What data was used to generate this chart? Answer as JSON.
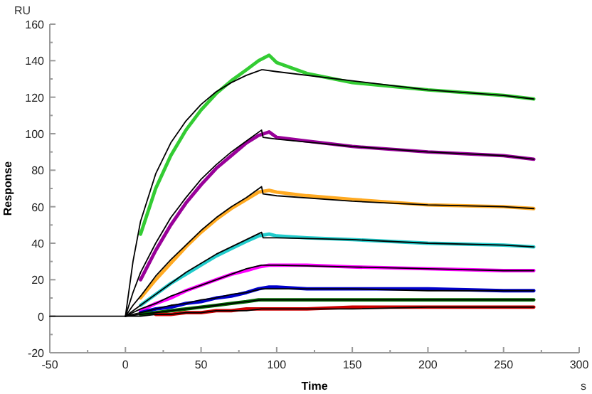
{
  "chart_data": {
    "type": "line",
    "xlabel": "Time",
    "ylabel": "Response",
    "annotations": [
      "RU",
      "s"
    ],
    "xlim": [
      -50,
      300
    ],
    "xticks": [
      -50,
      {
        "value": -25,
        "label": null
      },
      0,
      {
        "value": 25,
        "label": null
      },
      50,
      {
        "value": 75,
        "label": null
      },
      100,
      {
        "value": 125,
        "label": null
      },
      150,
      {
        "value": 175,
        "label": null
      },
      200,
      {
        "value": 225,
        "label": null
      },
      250,
      {
        "value": 275,
        "label": null
      },
      300
    ],
    "ylim": [
      -20,
      160
    ],
    "yticks": [
      -20,
      {
        "value": -10,
        "label": null
      },
      0,
      {
        "value": 10,
        "label": null
      },
      20,
      {
        "value": 30,
        "label": null
      },
      40,
      {
        "value": 50,
        "label": null
      },
      60,
      {
        "value": 70,
        "label": null
      },
      80,
      {
        "value": 90,
        "label": null
      },
      100,
      {
        "value": 110,
        "label": null
      },
      120,
      {
        "value": 130,
        "label": null
      },
      140,
      {
        "value": 150,
        "label": null
      },
      160
    ],
    "grid": false,
    "marker": "none",
    "line_style": "solid",
    "series": [
      {
        "color": "#33cc33",
        "x": [
          10,
          20,
          30,
          40,
          50,
          60,
          70,
          80,
          88,
          95,
          100,
          120,
          150,
          200,
          250,
          270
        ],
        "values": [
          45,
          70,
          88,
          102,
          113,
          122,
          129,
          135,
          140,
          143,
          139,
          133,
          128,
          124,
          121,
          119
        ]
      },
      {
        "color": "#990099",
        "x": [
          10,
          20,
          30,
          40,
          50,
          60,
          70,
          80,
          88,
          95,
          100,
          120,
          150,
          200,
          250,
          270
        ],
        "values": [
          20,
          36,
          50,
          62,
          72,
          81,
          88,
          95,
          99,
          101,
          98,
          96,
          93,
          90,
          88,
          86
        ]
      },
      {
        "color": "#ffaa22",
        "x": [
          10,
          20,
          30,
          40,
          50,
          60,
          70,
          80,
          88,
          95,
          100,
          120,
          150,
          200,
          250,
          270
        ],
        "values": [
          10,
          20,
          29,
          38,
          46,
          53,
          59,
          64,
          68,
          69,
          68,
          66,
          64,
          61,
          60,
          59
        ]
      },
      {
        "color": "#22cccc",
        "x": [
          10,
          20,
          30,
          40,
          50,
          60,
          70,
          80,
          88,
          95,
          100,
          120,
          150,
          200,
          250,
          270
        ],
        "values": [
          6,
          12,
          18,
          23,
          28,
          33,
          37,
          41,
          44,
          45,
          44,
          43,
          42,
          40,
          39,
          38
        ]
      },
      {
        "color": "#ff00ff",
        "x": [
          10,
          20,
          30,
          40,
          50,
          60,
          70,
          80,
          88,
          95,
          100,
          120,
          150,
          200,
          250,
          270
        ],
        "values": [
          3,
          7,
          10,
          14,
          17,
          20,
          23,
          25,
          27,
          28,
          28,
          28,
          27,
          26,
          25,
          25
        ]
      },
      {
        "color": "#0000cc",
        "x": [
          10,
          20,
          30,
          40,
          50,
          60,
          70,
          80,
          88,
          95,
          100,
          120,
          150,
          200,
          250,
          270
        ],
        "values": [
          2,
          4,
          5,
          7,
          8,
          10,
          11,
          13,
          15,
          16,
          16,
          15,
          15,
          15,
          14,
          14
        ]
      },
      {
        "color": "#006600",
        "x": [
          10,
          20,
          30,
          40,
          50,
          60,
          70,
          80,
          88,
          95,
          100,
          120,
          150,
          200,
          250,
          270
        ],
        "values": [
          1,
          2,
          3,
          4,
          5,
          6,
          7,
          8,
          9,
          9,
          9,
          9,
          9,
          9,
          9,
          9
        ]
      },
      {
        "color": "#cc0000",
        "x": [
          20,
          30,
          40,
          50,
          60,
          70,
          80,
          88,
          95,
          100,
          120,
          150,
          200,
          250,
          270
        ],
        "values": [
          1,
          1,
          2,
          2,
          3,
          3,
          4,
          4,
          4,
          4,
          4,
          5,
          5,
          5,
          5
        ]
      },
      {
        "color": "#000000",
        "x": [
          -50,
          0,
          5,
          10,
          20,
          30,
          40,
          50,
          60,
          70,
          80,
          90,
          91,
          100,
          150,
          200,
          250,
          270
        ],
        "values": [
          0,
          0,
          30,
          52,
          78,
          95,
          107,
          116,
          123,
          128,
          132,
          135,
          135,
          134,
          129,
          124,
          121,
          119
        ]
      },
      {
        "color": "#000000",
        "x": [
          0,
          5,
          10,
          20,
          30,
          40,
          50,
          60,
          70,
          80,
          90,
          91,
          100,
          150,
          200,
          250,
          270
        ],
        "values": [
          0,
          13,
          24,
          40,
          54,
          65,
          75,
          83,
          90,
          96,
          102,
          98,
          97,
          93,
          90,
          88,
          86
        ]
      },
      {
        "color": "#000000",
        "x": [
          0,
          5,
          10,
          20,
          30,
          40,
          50,
          60,
          70,
          80,
          90,
          91,
          100,
          150,
          200,
          250,
          270
        ],
        "values": [
          0,
          6,
          11,
          22,
          31,
          39,
          47,
          54,
          60,
          65,
          71,
          67,
          66,
          63,
          61,
          60,
          59
        ]
      },
      {
        "color": "#000000",
        "x": [
          0,
          5,
          10,
          20,
          30,
          40,
          50,
          60,
          70,
          80,
          90,
          91,
          100,
          150,
          200,
          250,
          270
        ],
        "values": [
          0,
          3,
          6,
          12,
          18,
          24,
          29,
          34,
          38,
          42,
          46,
          43,
          43,
          42,
          40,
          39,
          38
        ]
      },
      {
        "color": "#000000",
        "x": [
          0,
          5,
          10,
          20,
          30,
          40,
          50,
          60,
          70,
          80,
          90,
          91,
          100,
          150,
          200,
          250,
          270
        ],
        "values": [
          0,
          2,
          4,
          7,
          11,
          14,
          17,
          20,
          23,
          26,
          28,
          28,
          28,
          27,
          26,
          25,
          25
        ]
      },
      {
        "color": "#000000",
        "x": [
          0,
          5,
          10,
          20,
          30,
          40,
          50,
          60,
          70,
          80,
          90,
          91,
          100,
          150,
          200,
          250,
          270
        ],
        "values": [
          0,
          1,
          2,
          4,
          6,
          7,
          9,
          10,
          12,
          13,
          15,
          15,
          15,
          15,
          14,
          14,
          14
        ]
      },
      {
        "color": "#000000",
        "x": [
          0,
          5,
          10,
          20,
          30,
          40,
          50,
          60,
          70,
          80,
          90,
          91,
          100,
          150,
          200,
          250,
          270
        ],
        "values": [
          0,
          0.5,
          1,
          2,
          3,
          4,
          5,
          6,
          7,
          8,
          9,
          9,
          9,
          9,
          9,
          9,
          9
        ]
      },
      {
        "color": "#000000",
        "x": [
          0,
          5,
          10,
          20,
          30,
          40,
          50,
          60,
          70,
          80,
          90,
          91,
          100,
          150,
          200,
          250,
          270
        ],
        "values": [
          0,
          0,
          0,
          1,
          1,
          2,
          2,
          3,
          3,
          3,
          4,
          4,
          4,
          4,
          5,
          5,
          5
        ]
      }
    ]
  }
}
